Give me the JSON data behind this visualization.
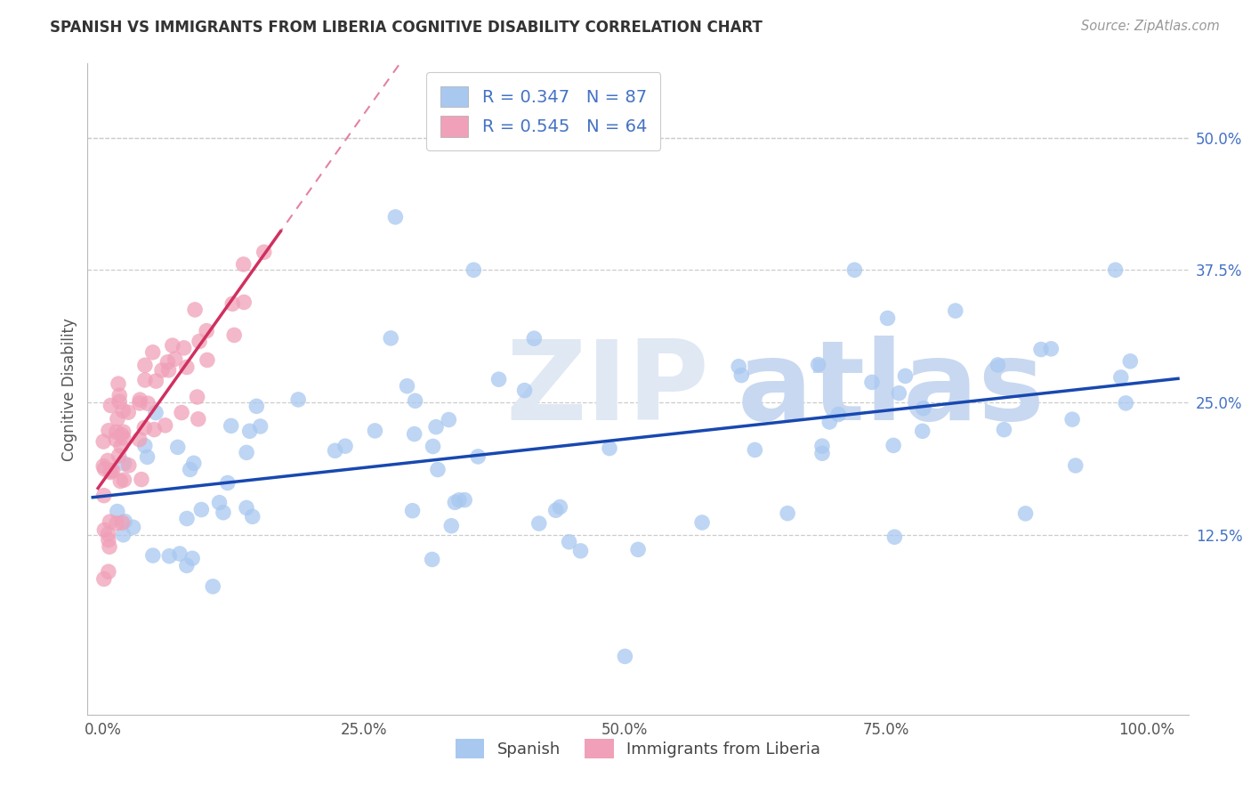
{
  "title": "SPANISH VS IMMIGRANTS FROM LIBERIA COGNITIVE DISABILITY CORRELATION CHART",
  "source_text": "Source: ZipAtlas.com",
  "ylabel": "Cognitive Disability",
  "R_spanish": 0.347,
  "N_spanish": 87,
  "R_liberia": 0.545,
  "N_liberia": 64,
  "spanish_color": "#a8c8f0",
  "liberia_color": "#f0a0b8",
  "spanish_line_color": "#1848b0",
  "liberia_line_color": "#d03060",
  "legend_label_spanish": "Spanish",
  "legend_label_liberia": "Immigrants from Liberia",
  "ytick_color": "#4472c4",
  "title_color": "#333333",
  "source_color": "#999999",
  "grid_color": "#cccccc",
  "watermark_zip_color": "#e0e8f4",
  "watermark_atlas_color": "#c8d8f0"
}
